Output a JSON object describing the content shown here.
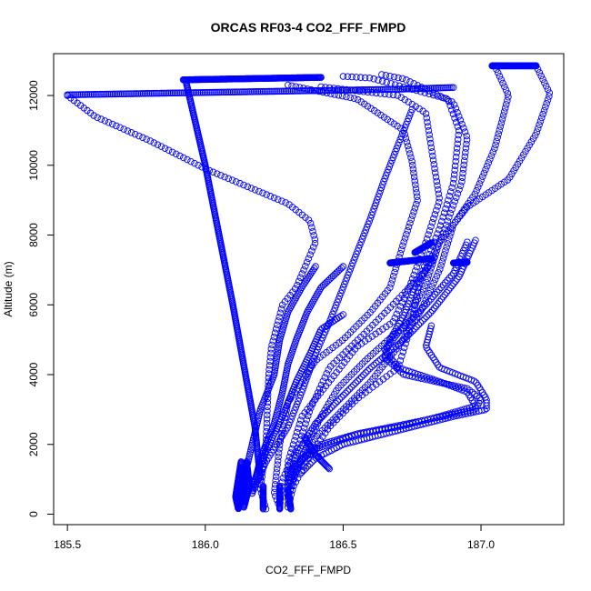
{
  "chart_data": {
    "type": "scatter",
    "title": "ORCAS RF03-4 CO2_FFF_FMPD",
    "xlabel": "CO2_FFF_FMPD",
    "ylabel": "Altitude (m)",
    "xlim": [
      185.45,
      187.3
    ],
    "ylim": [
      -300,
      13200
    ],
    "xticks": [
      185.5,
      186.0,
      186.5,
      187.0
    ],
    "xtick_labels": [
      "185.5",
      "186.0",
      "186.5",
      "187.0"
    ],
    "yticks": [
      0,
      2000,
      4000,
      6000,
      8000,
      10000,
      12000
    ],
    "ytick_labels": [
      "0",
      "2000",
      "4000",
      "6000",
      "8000",
      "10000",
      "12000"
    ],
    "marker": "open-circle",
    "color": "#0000ff",
    "grid": false,
    "legend": "none",
    "segments": [
      {
        "points": [
          [
            185.92,
            12450
          ],
          [
            186.42,
            12520
          ]
        ],
        "n": 180
      },
      {
        "points": [
          [
            185.5,
            12020
          ],
          [
            186.7,
            12180
          ],
          [
            186.9,
            12230
          ]
        ],
        "n": 220
      },
      {
        "points": [
          [
            185.93,
            12400
          ],
          [
            186.0,
            10000
          ],
          [
            186.1,
            6000
          ],
          [
            186.18,
            2500
          ],
          [
            186.2,
            1000
          ]
        ],
        "n": 260
      },
      {
        "points": [
          [
            185.5,
            12000
          ],
          [
            185.6,
            11400
          ],
          [
            185.8,
            10700
          ],
          [
            186.0,
            9900
          ],
          [
            186.3,
            8900
          ],
          [
            186.38,
            8400
          ],
          [
            186.4,
            7800
          ],
          [
            186.33,
            6500
          ],
          [
            186.28,
            6000
          ],
          [
            186.24,
            4800
          ],
          [
            186.23,
            4000
          ],
          [
            186.22,
            2000
          ],
          [
            186.2,
            700
          ],
          [
            186.22,
            150
          ]
        ],
        "n": 140
      },
      {
        "points": [
          [
            186.3,
            12300
          ],
          [
            186.55,
            11900
          ],
          [
            186.72,
            11000
          ],
          [
            186.75,
            10100
          ],
          [
            186.77,
            9000
          ],
          [
            186.72,
            7800
          ],
          [
            186.67,
            6500
          ],
          [
            186.6,
            5800
          ],
          [
            186.5,
            5000
          ],
          [
            186.4,
            4400
          ],
          [
            186.3,
            3200
          ],
          [
            186.27,
            2000
          ],
          [
            186.25,
            600
          ],
          [
            186.27,
            200
          ]
        ],
        "n": 140
      },
      {
        "points": [
          [
            186.42,
            12250
          ],
          [
            186.7,
            12000
          ],
          [
            186.8,
            11500
          ],
          [
            186.82,
            10500
          ],
          [
            186.85,
            9000
          ],
          [
            186.8,
            7800
          ],
          [
            186.74,
            6500
          ],
          [
            186.68,
            5500
          ],
          [
            186.55,
            4800
          ],
          [
            186.45,
            3800
          ],
          [
            186.35,
            2800
          ],
          [
            186.3,
            1500
          ],
          [
            186.3,
            300
          ]
        ],
        "n": 130
      },
      {
        "points": [
          [
            186.5,
            12550
          ],
          [
            186.6,
            12500
          ],
          [
            186.88,
            11900
          ],
          [
            186.92,
            11000
          ],
          [
            186.9,
            9500
          ],
          [
            186.85,
            8200
          ],
          [
            186.78,
            6800
          ],
          [
            186.75,
            5500
          ],
          [
            186.7,
            4200
          ],
          [
            186.55,
            3300
          ],
          [
            186.45,
            2500
          ],
          [
            186.38,
            1700
          ],
          [
            186.32,
            800
          ],
          [
            186.3,
            200
          ]
        ],
        "n": 130
      },
      {
        "points": [
          [
            186.64,
            12600
          ],
          [
            186.72,
            12480
          ],
          [
            186.9,
            11800
          ],
          [
            186.95,
            10800
          ],
          [
            186.93,
            9500
          ],
          [
            186.86,
            8000
          ],
          [
            186.8,
            7000
          ],
          [
            186.68,
            6000
          ],
          [
            186.58,
            5200
          ],
          [
            186.45,
            4200
          ],
          [
            186.38,
            3000
          ],
          [
            186.34,
            2000
          ],
          [
            186.28,
            1000
          ],
          [
            186.27,
            200
          ]
        ],
        "n": 130
      },
      {
        "points": [
          [
            187.04,
            12850
          ],
          [
            187.2,
            12850
          ]
        ],
        "n": 110
      },
      {
        "points": [
          [
            187.2,
            12850
          ],
          [
            187.25,
            12050
          ],
          [
            187.2,
            10900
          ],
          [
            187.1,
            9600
          ],
          [
            186.95,
            8800
          ],
          [
            186.85,
            7800
          ],
          [
            186.8,
            6600
          ],
          [
            186.72,
            5400
          ],
          [
            186.58,
            4400
          ],
          [
            186.48,
            3600
          ],
          [
            186.42,
            2800
          ],
          [
            186.37,
            2000
          ],
          [
            186.33,
            1200
          ],
          [
            186.3,
            500
          ]
        ],
        "n": 140
      },
      {
        "points": [
          [
            187.05,
            12850
          ],
          [
            187.1,
            12000
          ],
          [
            187.05,
            10500
          ],
          [
            186.98,
            9200
          ],
          [
            186.9,
            8300
          ],
          [
            186.85,
            7000
          ],
          [
            186.78,
            5800
          ],
          [
            186.7,
            4800
          ],
          [
            186.6,
            3800
          ],
          [
            186.5,
            3000
          ],
          [
            186.4,
            2200
          ],
          [
            186.34,
            1400
          ],
          [
            186.3,
            700
          ]
        ],
        "n": 130
      },
      {
        "points": [
          [
            186.75,
            11600
          ],
          [
            186.7,
            10600
          ],
          [
            186.65,
            9600
          ],
          [
            186.6,
            8500
          ],
          [
            186.55,
            7500
          ],
          [
            186.5,
            6500
          ],
          [
            186.45,
            5500
          ],
          [
            186.4,
            4600
          ],
          [
            186.35,
            3500
          ],
          [
            186.3,
            2500
          ],
          [
            186.22,
            1500
          ],
          [
            186.17,
            600
          ]
        ],
        "n": 130
      },
      {
        "points": [
          [
            186.5,
            7100
          ],
          [
            186.42,
            6500
          ],
          [
            186.37,
            5800
          ],
          [
            186.33,
            5000
          ],
          [
            186.3,
            4300
          ],
          [
            186.28,
            3500
          ],
          [
            186.25,
            2600
          ],
          [
            186.2,
            1600
          ],
          [
            186.17,
            600
          ]
        ],
        "n": 110
      },
      {
        "points": [
          [
            186.5,
            5720
          ],
          [
            186.42,
            5300
          ],
          [
            186.38,
            4600
          ],
          [
            186.33,
            3800
          ],
          [
            186.28,
            2800
          ],
          [
            186.22,
            1800
          ],
          [
            186.17,
            800
          ]
        ],
        "n": 80
      },
      {
        "points": [
          [
            186.4,
            7100
          ],
          [
            186.35,
            6500
          ],
          [
            186.3,
            5800
          ],
          [
            186.27,
            5000
          ],
          [
            186.25,
            4000
          ],
          [
            186.2,
            3000
          ],
          [
            186.17,
            2000
          ],
          [
            186.14,
            1000
          ],
          [
            186.12,
            300
          ]
        ],
        "n": 110
      },
      {
        "points": [
          [
            186.67,
            7200
          ],
          [
            186.82,
            7330
          ]
        ],
        "n": 90
      },
      {
        "points": [
          [
            186.76,
            7500
          ],
          [
            186.82,
            7780
          ]
        ],
        "n": 30
      },
      {
        "points": [
          [
            186.9,
            7200
          ],
          [
            186.95,
            7220
          ]
        ],
        "n": 25
      },
      {
        "points": [
          [
            186.98,
            7850
          ],
          [
            186.92,
            6800
          ],
          [
            186.82,
            5800
          ],
          [
            186.72,
            5000
          ],
          [
            186.6,
            4200
          ],
          [
            186.5,
            3400
          ],
          [
            186.4,
            2600
          ],
          [
            186.33,
            1700
          ],
          [
            186.3,
            900
          ]
        ],
        "n": 110
      },
      {
        "points": [
          [
            186.95,
            7800
          ],
          [
            186.9,
            6900
          ],
          [
            186.8,
            6000
          ],
          [
            186.7,
            5200
          ],
          [
            186.65,
            4700
          ],
          [
            186.7,
            4200
          ],
          [
            186.85,
            3800
          ],
          [
            186.95,
            3500
          ],
          [
            186.98,
            3100
          ],
          [
            186.85,
            2800
          ],
          [
            186.7,
            2500
          ],
          [
            186.55,
            2300
          ],
          [
            186.42,
            2000
          ],
          [
            186.33,
            1400
          ],
          [
            186.3,
            800
          ]
        ],
        "n": 150
      },
      {
        "points": [
          [
            186.83,
            7350
          ],
          [
            186.76,
            6500
          ],
          [
            186.72,
            5700
          ],
          [
            186.67,
            5000
          ],
          [
            186.65,
            4500
          ],
          [
            186.72,
            4000
          ],
          [
            186.95,
            3600
          ],
          [
            187.0,
            3300
          ],
          [
            186.98,
            3000
          ],
          [
            186.8,
            2700
          ],
          [
            186.55,
            2300
          ],
          [
            186.38,
            1800
          ],
          [
            186.3,
            1200
          ]
        ],
        "n": 140
      },
      {
        "points": [
          [
            186.82,
            5400
          ],
          [
            186.8,
            4800
          ],
          [
            186.85,
            4200
          ],
          [
            186.98,
            3800
          ],
          [
            187.02,
            3300
          ],
          [
            187.02,
            3000
          ],
          [
            186.9,
            2800
          ],
          [
            186.7,
            2400
          ],
          [
            186.5,
            2000
          ],
          [
            186.4,
            1600
          ],
          [
            186.35,
            1200
          ]
        ],
        "n": 110
      },
      {
        "points": [
          [
            186.13,
            1500
          ],
          [
            186.12,
            1000
          ],
          [
            186.11,
            500
          ],
          [
            186.12,
            150
          ],
          [
            186.15,
            1400
          ]
        ],
        "n": 110
      },
      {
        "points": [
          [
            186.15,
            1500
          ],
          [
            186.16,
            800
          ],
          [
            186.14,
            200
          ]
        ],
        "n": 50
      },
      {
        "points": [
          [
            186.21,
            800
          ],
          [
            186.21,
            150
          ]
        ],
        "n": 25
      },
      {
        "points": [
          [
            186.27,
            800
          ],
          [
            186.27,
            150
          ]
        ],
        "n": 25
      },
      {
        "points": [
          [
            186.3,
            700
          ],
          [
            186.31,
            150
          ]
        ],
        "n": 25
      },
      {
        "points": [
          [
            186.36,
            2200
          ],
          [
            186.4,
            1700
          ],
          [
            186.45,
            1300
          ]
        ],
        "n": 30
      }
    ]
  }
}
